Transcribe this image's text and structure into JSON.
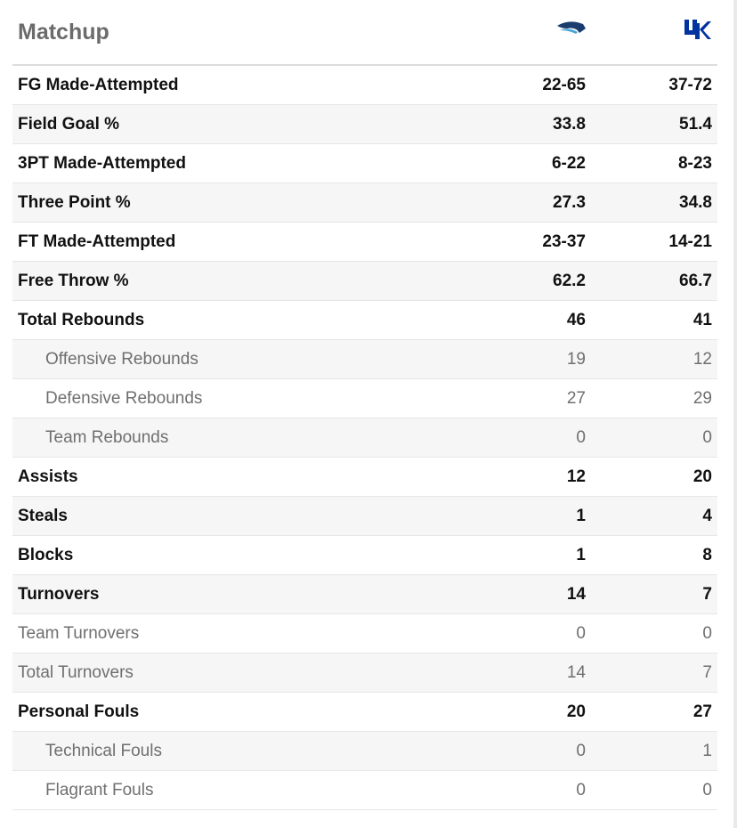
{
  "panel": {
    "title": "Matchup",
    "away_logo_color": "#1b3d6e",
    "away_logo_accent": "#4aa3d9",
    "home_logo_color": "#0033a0"
  },
  "rows": [
    {
      "label": "FG Made-Attempted",
      "away": "22-65",
      "home": "37-72",
      "style": "main"
    },
    {
      "label": "Field Goal %",
      "away": "33.8",
      "home": "51.4",
      "style": "main"
    },
    {
      "label": "3PT Made-Attempted",
      "away": "6-22",
      "home": "8-23",
      "style": "main"
    },
    {
      "label": "Three Point %",
      "away": "27.3",
      "home": "34.8",
      "style": "main"
    },
    {
      "label": "FT Made-Attempted",
      "away": "23-37",
      "home": "14-21",
      "style": "main"
    },
    {
      "label": "Free Throw %",
      "away": "62.2",
      "home": "66.7",
      "style": "main"
    },
    {
      "label": "Total Rebounds",
      "away": "46",
      "home": "41",
      "style": "main"
    },
    {
      "label": "Offensive Rebounds",
      "away": "19",
      "home": "12",
      "style": "indent"
    },
    {
      "label": "Defensive Rebounds",
      "away": "27",
      "home": "29",
      "style": "indent"
    },
    {
      "label": "Team Rebounds",
      "away": "0",
      "home": "0",
      "style": "indent"
    },
    {
      "label": "Assists",
      "away": "12",
      "home": "20",
      "style": "main"
    },
    {
      "label": "Steals",
      "away": "1",
      "home": "4",
      "style": "main"
    },
    {
      "label": "Blocks",
      "away": "1",
      "home": "8",
      "style": "main"
    },
    {
      "label": "Turnovers",
      "away": "14",
      "home": "7",
      "style": "main"
    },
    {
      "label": "Team Turnovers",
      "away": "0",
      "home": "0",
      "style": "sub"
    },
    {
      "label": "Total Turnovers",
      "away": "14",
      "home": "7",
      "style": "sub"
    },
    {
      "label": "Personal Fouls",
      "away": "20",
      "home": "27",
      "style": "main"
    },
    {
      "label": "Technical Fouls",
      "away": "0",
      "home": "1",
      "style": "indent"
    },
    {
      "label": "Flagrant Fouls",
      "away": "0",
      "home": "0",
      "style": "indent"
    }
  ]
}
